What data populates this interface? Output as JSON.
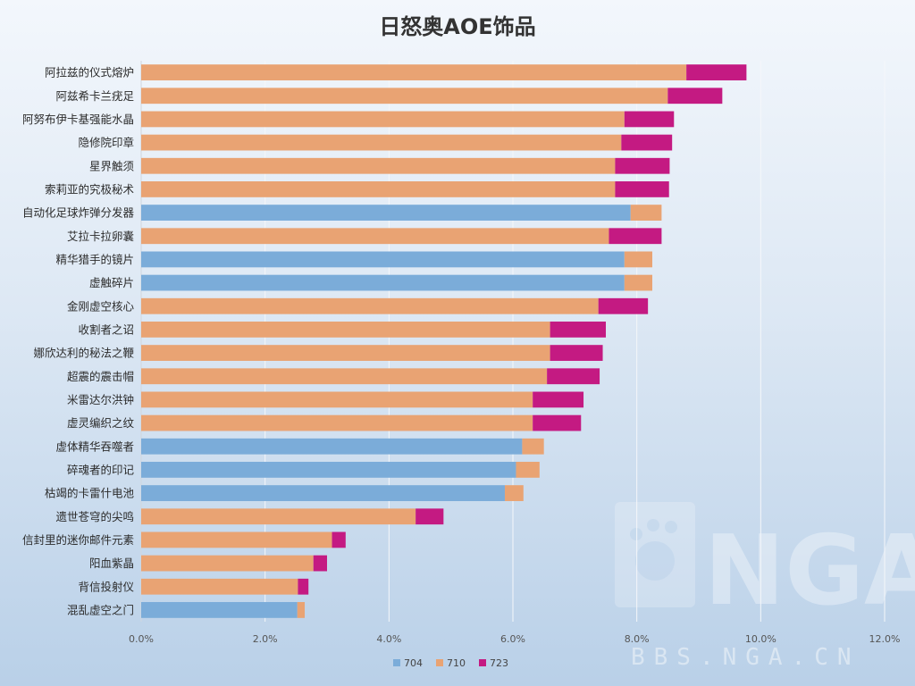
{
  "chart_data": {
    "type": "bar",
    "orientation": "horizontal",
    "stacked": true,
    "title": "日怒奥AOE饰品",
    "categories": [
      "阿拉兹的仪式熔炉",
      "阿兹希卡兰疣足",
      "阿努布伊卡基强能水晶",
      "隐修院印章",
      "星界触须",
      "索莉亚的究极秘术",
      "自动化足球炸弹分发器",
      "艾拉卡拉卵囊",
      "精华猎手的镜片",
      "虚触碎片",
      "金刚虚空核心",
      "收割者之诏",
      "娜欣达利的秘法之鞭",
      "超震的震击帽",
      "米雷达尔洪钟",
      "虚灵编织之纹",
      "虚体精华吞噬者",
      "碎魂者的印记",
      "枯竭的卡雷什电池",
      "遗世苍穹的尖鸣",
      "信封里的迷你邮件元素",
      "阳血紫晶",
      "背信投射仪",
      "混乱虚空之门"
    ],
    "series": [
      {
        "name": "704",
        "color": "#7bacd9",
        "values": [
          0,
          0,
          0,
          0,
          0,
          0,
          7.9,
          0,
          7.8,
          7.8,
          0,
          0,
          0,
          0,
          0,
          0,
          6.15,
          6.05,
          5.87,
          0,
          0,
          0,
          0,
          2.52
        ]
      },
      {
        "name": "710",
        "color": "#e9a373",
        "values": [
          8.8,
          8.5,
          7.8,
          7.75,
          7.65,
          7.65,
          0.5,
          7.55,
          0.45,
          0.45,
          7.38,
          6.6,
          6.6,
          6.55,
          6.32,
          6.32,
          0.35,
          0.38,
          0.3,
          4.43,
          3.08,
          2.78,
          2.53,
          0.12
        ]
      },
      {
        "name": "723",
        "color": "#c41a82",
        "values": [
          0.97,
          0.88,
          0.8,
          0.82,
          0.88,
          0.87,
          0,
          0.85,
          0,
          0,
          0.8,
          0.9,
          0.85,
          0.85,
          0.82,
          0.78,
          0,
          0,
          0,
          0.45,
          0.22,
          0.22,
          0.17,
          0
        ]
      }
    ],
    "xlim": [
      0,
      12
    ],
    "xticks": [
      "0.0%",
      "2.0%",
      "4.0%",
      "6.0%",
      "8.0%",
      "10.0%",
      "12.0%"
    ],
    "xlabel": "",
    "ylabel": "",
    "grid": true,
    "legend_position": "bottom"
  },
  "watermark": {
    "logo_text": "NGA",
    "url_text": "BBS.NGA.CN"
  }
}
